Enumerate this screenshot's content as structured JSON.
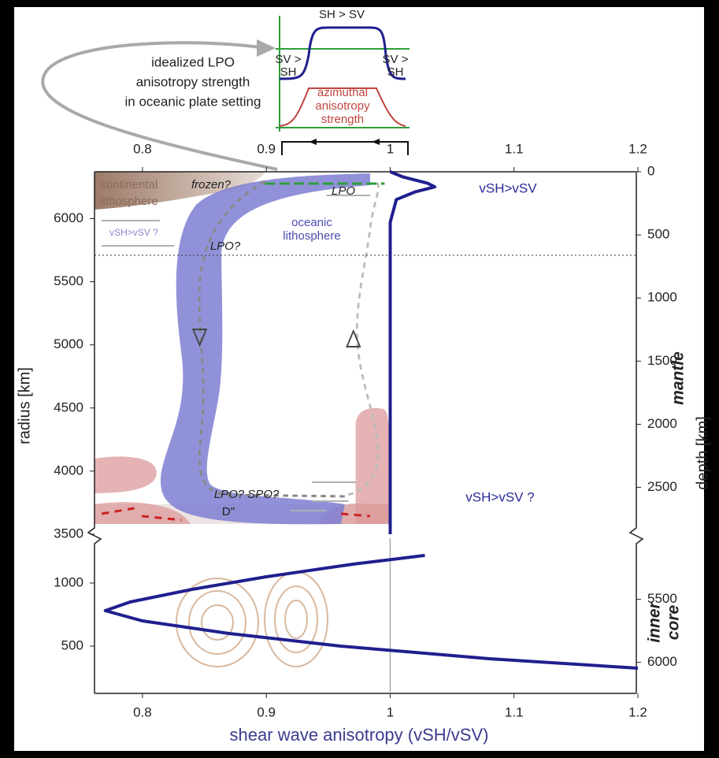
{
  "chart_data": {
    "type": "line",
    "xlabel": "shear wave anisotropy (vSH/vSV)",
    "xlim": [
      0.76,
      1.2
    ],
    "xticks": [
      0.8,
      0.9,
      1,
      1.1,
      1.2
    ],
    "upper": {
      "ylabel": "radius [km]",
      "y2label": "depth [km]",
      "ylim": [
        3500,
        6371
      ],
      "yticks": [
        3500,
        4000,
        4500,
        5000,
        5500,
        6000
      ],
      "y2lim": [
        2871,
        0
      ],
      "y2ticks": [
        0,
        500,
        1000,
        1500,
        2000,
        2500
      ],
      "region_label": "mantle",
      "series": [
        {
          "color": "#1f1f8f",
          "axis": "y2",
          "x": [
            1.0,
            1.01,
            1.03,
            1.036,
            1.02,
            1.005,
            1.0,
            1.0
          ],
          "y": [
            0,
            40,
            90,
            120,
            160,
            220,
            400,
            2871
          ]
        }
      ]
    },
    "lower": {
      "ylim": [
        125,
        1356
      ],
      "yticks": [
        500,
        1000
      ],
      "y2lim": [
        6246,
        5015
      ],
      "y2ticks": [
        5500,
        6000
      ],
      "region_label": [
        "inner",
        "core"
      ],
      "vline": 1,
      "series": [
        {
          "color": "#1f1f8f",
          "x": [
            1.028,
            0.97,
            0.9,
            0.84,
            0.79,
            0.77,
            0.8,
            0.87,
            0.96,
            1.08,
            1.2
          ],
          "y": [
            1219,
            1150,
            1050,
            950,
            850,
            781,
            700,
            600,
            500,
            400,
            325
          ]
        }
      ]
    },
    "annotations": [
      "idealized LPO",
      "anisotropy strength",
      "in oceanic plate setting",
      "SH > SV",
      "SV >",
      "SH",
      "SV >",
      "SH",
      "azimuthal",
      "anisotropy",
      "strength",
      "continental",
      "lithosphere",
      "frozen?",
      "LPO",
      "oceanic",
      "lithosphere",
      "vSH>vSV ?",
      "LPO?",
      "LPO?  SPO?",
      "D\"",
      "vSH>vSV",
      "vSH>vSV ?"
    ]
  }
}
